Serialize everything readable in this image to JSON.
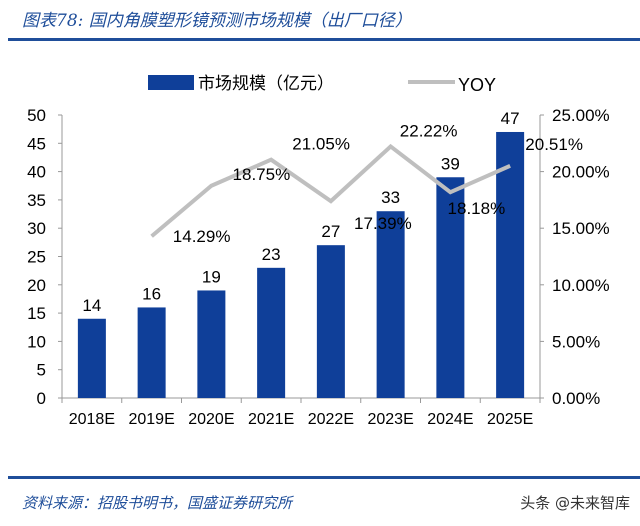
{
  "title": "图表78: 国内角膜塑形镜预测市场规模（出厂口径）",
  "source": "资料来源：招股书明书，国盛证券研究所",
  "watermark": "头条 @未来智库",
  "colors": {
    "bar": "#0f3f99",
    "line": "#bfbfbf",
    "accent": "#1f4e9a"
  },
  "chart_data": {
    "type": "bar+line",
    "categories": [
      "2018E",
      "2019E",
      "2020E",
      "2021E",
      "2022E",
      "2023E",
      "2024E",
      "2025E"
    ],
    "series": [
      {
        "name": "市场规模（亿元）",
        "type": "bar",
        "axis": "left",
        "values": [
          14,
          16,
          19,
          23,
          27,
          33,
          39,
          47
        ],
        "labels": [
          "14",
          "16",
          "19",
          "23",
          "27",
          "33",
          "39",
          "47"
        ]
      },
      {
        "name": "YOY",
        "type": "line",
        "axis": "right",
        "values": [
          null,
          14.29,
          18.75,
          21.05,
          17.39,
          22.22,
          18.18,
          20.51
        ],
        "labels": [
          "",
          "14.29%",
          "18.75%",
          "21.05%",
          "17.39%",
          "22.22%",
          "18.18%",
          "20.51%"
        ]
      }
    ],
    "ylim_left": [
      0,
      50
    ],
    "yticks_left": [
      "0",
      "5",
      "10",
      "15",
      "20",
      "25",
      "30",
      "35",
      "40",
      "45",
      "50"
    ],
    "ylim_right": [
      0,
      25
    ],
    "yticks_right": [
      "0.00%",
      "5.00%",
      "10.00%",
      "15.00%",
      "20.00%",
      "25.00%"
    ],
    "legend": "top",
    "grid": false
  }
}
